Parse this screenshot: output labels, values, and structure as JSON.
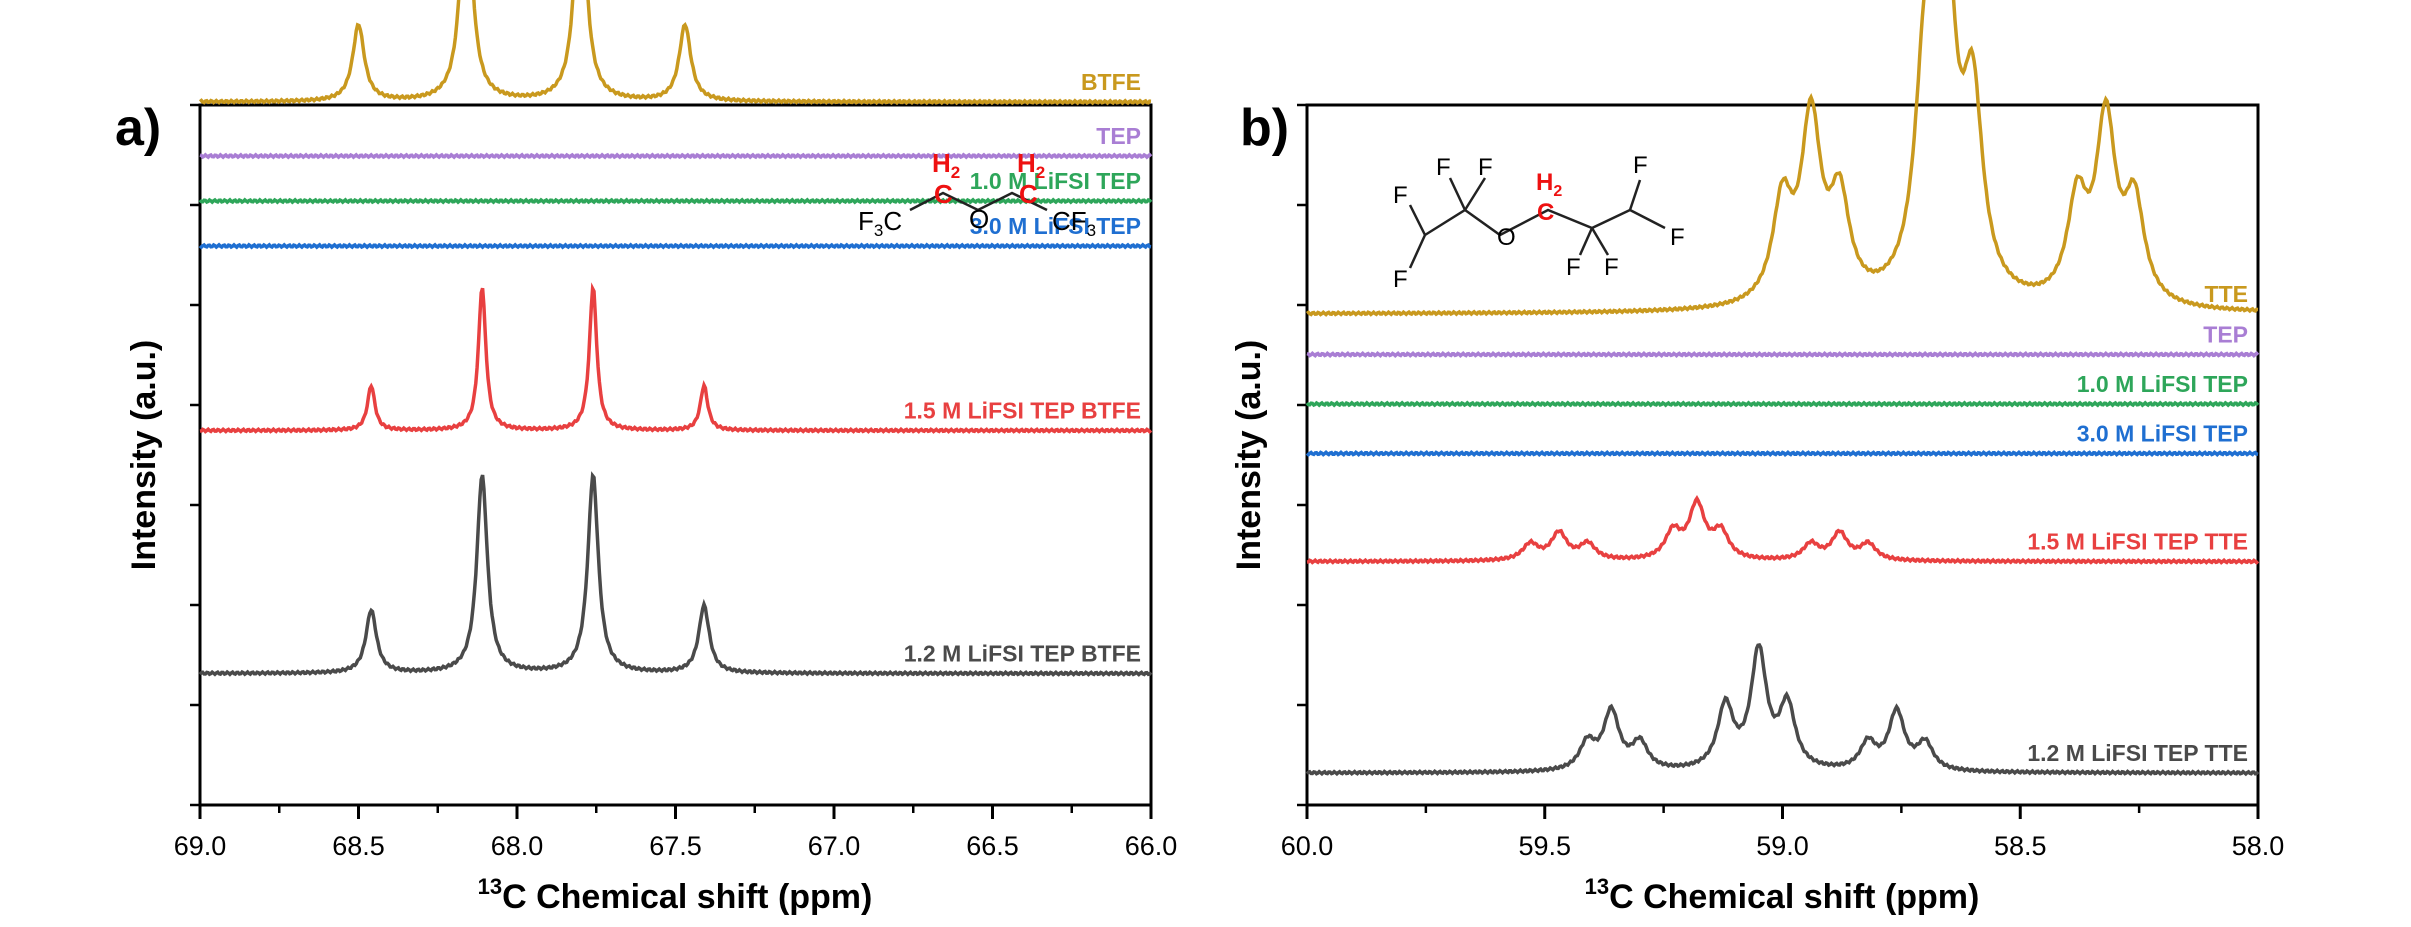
{
  "chart_data": [
    {
      "type": "line",
      "panel_label": "a)",
      "xlabel_sup": "13",
      "xlabel_main": "C Chemical shift (ppm)",
      "ylabel": "Intensity (a.u.)",
      "xlim": [
        69.0,
        66.0
      ],
      "x_reversed": true,
      "xticks": [
        "69.0",
        "68.5",
        "68.0",
        "67.5",
        "67.0",
        "66.5",
        "66.0"
      ],
      "yticks_labeled": false,
      "molecule_label": "BTFE structure: F3C-CH2-O-CH2-CF3",
      "series": [
        {
          "name": "BTFE",
          "color": "#c9991e",
          "baseline": 0.72,
          "peak_width": 0.022,
          "peaks": [
            [
              68.5,
              0.085
            ],
            [
              68.16,
              0.245
            ],
            [
              67.8,
              0.245
            ],
            [
              67.47,
              0.085
            ]
          ]
        },
        {
          "name": "TEP",
          "color": "#a97ed4",
          "baseline": 0.66,
          "peak_width": 0.02,
          "peaks": []
        },
        {
          "name": "1.0 M LiFSI TEP",
          "color": "#2ea65a",
          "baseline": 0.61,
          "peak_width": 0.02,
          "peaks": []
        },
        {
          "name": "3.0 M LiFSI TEP",
          "color": "#1f6fd1",
          "baseline": 0.56,
          "peak_width": 0.02,
          "peaks": []
        },
        {
          "name": "1.5 M LiFSI TEP  BTFE",
          "color": "#e84040",
          "baseline": 0.355,
          "peak_width": 0.014,
          "peaks": [
            [
              68.46,
              0.05
            ],
            [
              68.11,
              0.16
            ],
            [
              67.76,
              0.16
            ],
            [
              67.41,
              0.05
            ]
          ]
        },
        {
          "name": "1.2 M LiFSI TEP  BTFE",
          "color": "#4a4a4a",
          "baseline": 0.085,
          "peak_width": 0.02,
          "peaks": [
            [
              68.46,
              0.07
            ],
            [
              68.11,
              0.22
            ],
            [
              67.76,
              0.22
            ],
            [
              67.41,
              0.075
            ]
          ]
        }
      ]
    },
    {
      "type": "line",
      "panel_label": "b)",
      "xlabel_sup": "13",
      "xlabel_main": "C Chemical shift (ppm)",
      "ylabel": "Intensity (a.u.)",
      "xlim": [
        60.0,
        58.0
      ],
      "x_reversed": true,
      "xticks": [
        "60.0",
        "59.5",
        "59.0",
        "58.5",
        "58.0"
      ],
      "yticks_labeled": false,
      "molecule_label": "TTE structure: CHF2-CF2-O-CH2-CF2-CHF2",
      "series": [
        {
          "name": "TTE",
          "color": "#c9991e",
          "baseline": 0.51,
          "peak_width": 0.025,
          "peaks": [
            [
              59.0,
              0.11
            ],
            [
              58.94,
              0.2
            ],
            [
              58.88,
              0.11
            ],
            [
              58.7,
              0.23
            ],
            [
              58.66,
              0.41
            ],
            [
              58.6,
              0.21
            ],
            [
              58.38,
              0.11
            ],
            [
              58.32,
              0.2
            ],
            [
              58.26,
              0.11
            ]
          ]
        },
        {
          "name": "TEP",
          "color": "#a97ed4",
          "baseline": 0.465,
          "peak_width": 0.02,
          "peaks": []
        },
        {
          "name": "1.0 M LiFSI TEP",
          "color": "#2ea65a",
          "baseline": 0.41,
          "peak_width": 0.02,
          "peaks": []
        },
        {
          "name": "3.0 M LiFSI TEP",
          "color": "#1f6fd1",
          "baseline": 0.355,
          "peak_width": 0.02,
          "peaks": []
        },
        {
          "name": "1.5 M LiFSI TEP  TTE",
          "color": "#e84040",
          "baseline": 0.235,
          "peak_width": 0.02,
          "peaks": [
            [
              59.53,
              0.018
            ],
            [
              59.47,
              0.03
            ],
            [
              59.41,
              0.018
            ],
            [
              59.23,
              0.03
            ],
            [
              59.18,
              0.06
            ],
            [
              59.13,
              0.03
            ],
            [
              58.94,
              0.018
            ],
            [
              58.88,
              0.03
            ],
            [
              58.82,
              0.018
            ]
          ]
        },
        {
          "name": "1.2 M LiFSI TEP  TTE",
          "color": "#4a4a4a",
          "baseline": 0.0,
          "peak_width": 0.02,
          "peaks": [
            [
              59.41,
              0.03
            ],
            [
              59.36,
              0.065
            ],
            [
              59.3,
              0.03
            ],
            [
              59.12,
              0.07
            ],
            [
              59.05,
              0.13
            ],
            [
              58.99,
              0.07
            ],
            [
              58.82,
              0.03
            ],
            [
              58.76,
              0.065
            ],
            [
              58.7,
              0.03
            ]
          ]
        }
      ]
    }
  ]
}
